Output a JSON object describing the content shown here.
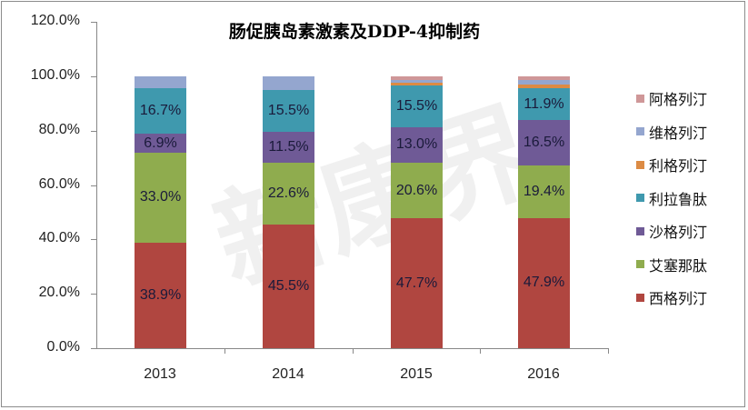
{
  "chart_data": {
    "type": "bar",
    "stacked": true,
    "title": "肠促胰岛素激素及DDP-4抑制药",
    "xlabel": "",
    "ylabel": "",
    "ylim": [
      0,
      120
    ],
    "yticks": [
      "0.0%",
      "20.0%",
      "40.0%",
      "60.0%",
      "80.0%",
      "100.0%",
      "120.0%"
    ],
    "grid": false,
    "legend_position": "right",
    "categories": [
      "2013",
      "2014",
      "2015",
      "2016"
    ],
    "series": [
      {
        "name": "西格列汀",
        "color": "#b04640",
        "values": [
          38.9,
          45.5,
          47.7,
          47.9
        ],
        "labels": [
          "38.9%",
          "45.5%",
          "47.7%",
          "47.9%"
        ]
      },
      {
        "name": "艾塞那肽",
        "color": "#8fac4e",
        "values": [
          33.0,
          22.6,
          20.6,
          19.4
        ],
        "labels": [
          "33.0%",
          "22.6%",
          "20.6%",
          "19.4%"
        ]
      },
      {
        "name": "沙格列汀",
        "color": "#6f5a96",
        "values": [
          6.9,
          11.5,
          13.0,
          16.5
        ],
        "labels": [
          "6.9%",
          "11.5%",
          "13.0%",
          "16.5%"
        ]
      },
      {
        "name": "利拉鲁肽",
        "color": "#3f99ae",
        "values": [
          16.7,
          15.5,
          15.5,
          11.9
        ],
        "labels": [
          "16.7%",
          "15.5%",
          "15.5%",
          "11.9%"
        ]
      },
      {
        "name": "利格列汀",
        "color": "#dc8b44",
        "values": [
          0.0,
          0.0,
          1.0,
          1.3
        ],
        "labels": [
          "",
          "",
          "",
          ""
        ]
      },
      {
        "name": "维格列汀",
        "color": "#94a6cf",
        "values": [
          4.5,
          4.9,
          1.0,
          1.5
        ],
        "labels": [
          "",
          "",
          "",
          ""
        ]
      },
      {
        "name": "阿格列汀",
        "color": "#cf9798",
        "values": [
          0.0,
          0.0,
          1.2,
          1.5
        ],
        "labels": [
          "",
          "",
          "",
          ""
        ]
      }
    ]
  },
  "legend": [
    {
      "label": "阿格列汀",
      "color": "#cf9798"
    },
    {
      "label": "维格列汀",
      "color": "#94a6cf"
    },
    {
      "label": "利格列汀",
      "color": "#dc8b44"
    },
    {
      "label": "利拉鲁肽",
      "color": "#3f99ae"
    },
    {
      "label": "沙格列汀",
      "color": "#6f5a96"
    },
    {
      "label": "艾塞那肽",
      "color": "#8fac4e"
    },
    {
      "label": "西格列汀",
      "color": "#b04640"
    }
  ],
  "watermark": "新康界"
}
